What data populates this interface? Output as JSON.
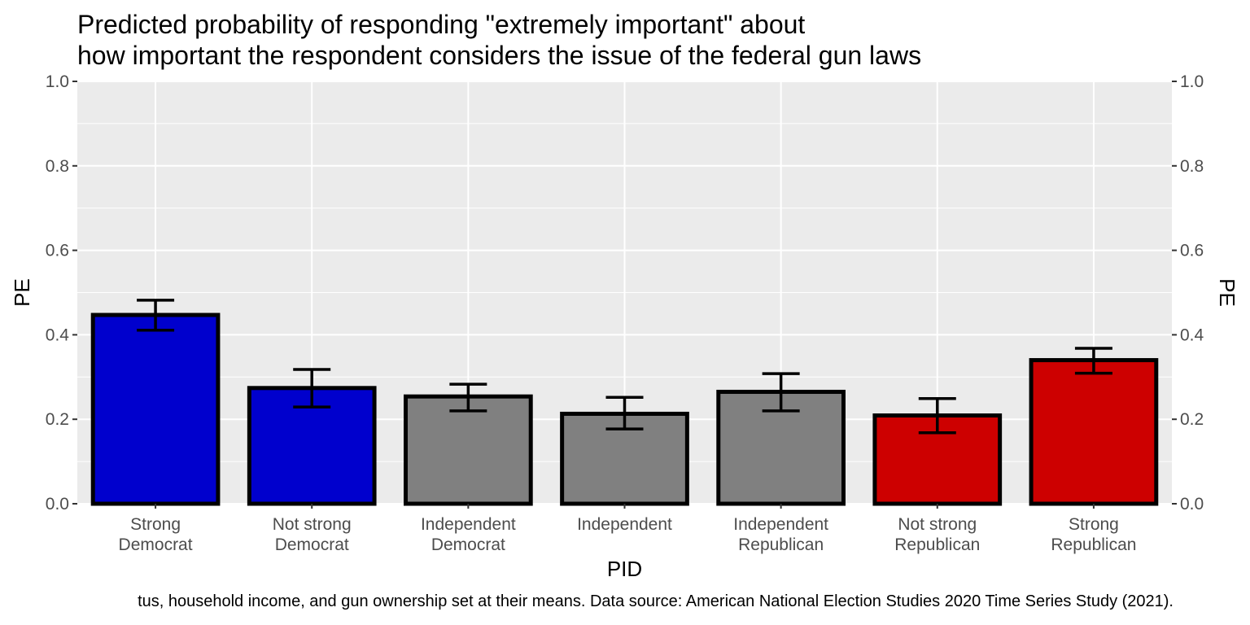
{
  "chart_data": {
    "type": "bar",
    "title_lines": [
      "Predicted probability of responding \"extremely important\" about",
      "how important the respondent considers the issue of the federal gun laws"
    ],
    "xlabel": "PID",
    "ylabel": "PE",
    "ylabel_right": "PE",
    "ylim": [
      0,
      1
    ],
    "y_ticks": [
      "0.0",
      "0.2",
      "0.4",
      "0.6",
      "0.8",
      "1.0"
    ],
    "y_tick_values": [
      0,
      0.2,
      0.4,
      0.6,
      0.8,
      1.0
    ],
    "grid": true,
    "legend": "none",
    "categories": [
      [
        "Strong",
        "Democrat"
      ],
      [
        "Not strong",
        "Democrat"
      ],
      [
        "Independent",
        "Democrat"
      ],
      [
        "Independent"
      ],
      [
        "Independent",
        "Republican"
      ],
      [
        "Not strong",
        "Republican"
      ],
      [
        "Strong",
        "Republican"
      ]
    ],
    "values": [
      0.447,
      0.274,
      0.254,
      0.213,
      0.265,
      0.209,
      0.34
    ],
    "error_lower": [
      0.411,
      0.229,
      0.22,
      0.177,
      0.22,
      0.168,
      0.309
    ],
    "error_upper": [
      0.482,
      0.318,
      0.283,
      0.252,
      0.308,
      0.249,
      0.368
    ],
    "bar_colors": [
      "#0000cd",
      "#0000cd",
      "#808080",
      "#808080",
      "#808080",
      "#cd0000",
      "#cd0000"
    ],
    "caption": "tus, household income, and gun ownership set at their means. Data source: American National Election Studies 2020 Time Series Study (2021)."
  },
  "colors": {
    "panel_bg": "#ebebeb",
    "grid": "#ffffff",
    "bar_outline": "#000000"
  }
}
